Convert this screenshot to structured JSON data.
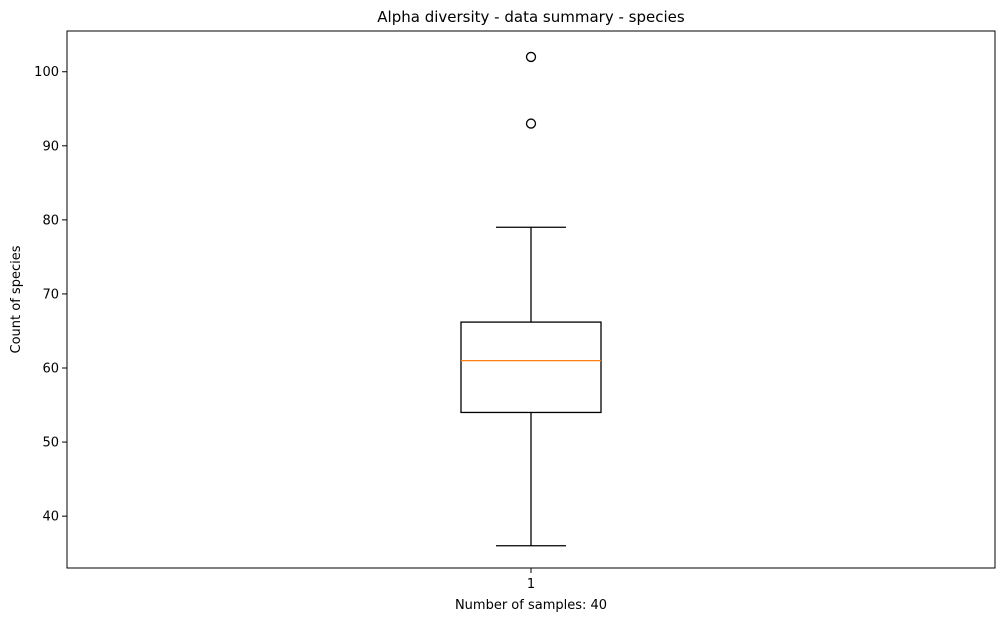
{
  "chart_data": {
    "type": "box",
    "title": "Alpha diversity - data summary - species",
    "xlabel": "Number of samples: 40",
    "ylabel": "Count of species",
    "categories": [
      "1"
    ],
    "ylim": [
      33,
      105.5
    ],
    "yticks": [
      40,
      50,
      60,
      70,
      80,
      90,
      100
    ],
    "grid": false,
    "series": [
      {
        "category": "1",
        "whisker_low": 36,
        "q1": 54,
        "median": 61,
        "q3": 66.2,
        "whisker_high": 79,
        "outliers": [
          93,
          102
        ]
      }
    ],
    "colors": {
      "box": "#000000",
      "median": "#ff7f0e",
      "background": "#ffffff"
    }
  }
}
